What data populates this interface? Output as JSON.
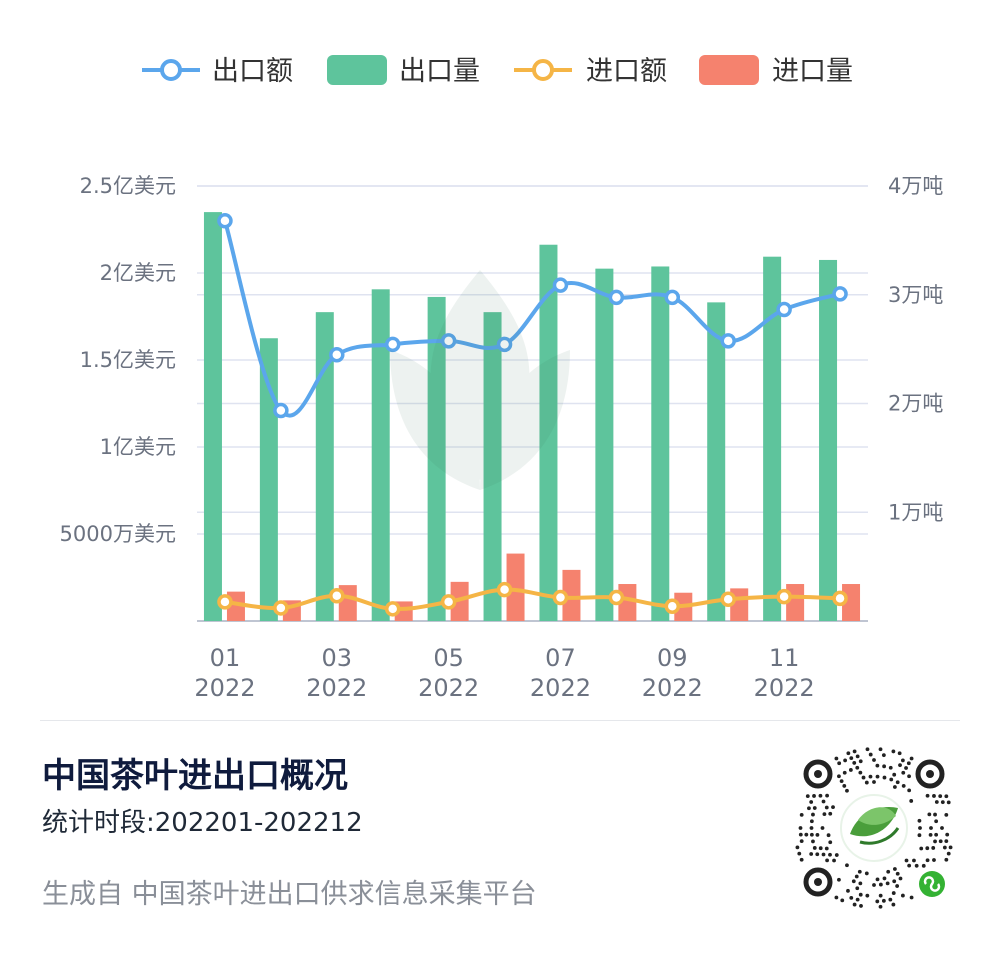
{
  "legend": {
    "export_value": "出口额",
    "export_volume": "出口量",
    "import_value": "进口额",
    "import_volume": "进口量"
  },
  "colors": {
    "export_value": "#5ba6ec",
    "export_volume": "#5ec49c",
    "import_value": "#f5b546",
    "import_volume": "#f5826e",
    "grid": "#dfe3f0"
  },
  "chart_data": {
    "type": "bar",
    "categories": [
      "01",
      "02",
      "03",
      "04",
      "05",
      "06",
      "07",
      "08",
      "09",
      "10",
      "11",
      "12"
    ],
    "x_tick_labels": [
      {
        "month": "01",
        "year": "2022"
      },
      {
        "month": "03",
        "year": "2022"
      },
      {
        "month": "05",
        "year": "2022"
      },
      {
        "month": "07",
        "year": "2022"
      },
      {
        "month": "09",
        "year": "2022"
      },
      {
        "month": "11",
        "year": "2022"
      }
    ],
    "left_axis": {
      "unit": "美元",
      "range": [
        0,
        250000000
      ],
      "tick_values": [
        50000000,
        100000000,
        150000000,
        200000000,
        250000000
      ],
      "tick_labels": [
        "5000万美元",
        "1亿美元",
        "1.5亿美元",
        "2亿美元",
        "2.5亿美元"
      ]
    },
    "right_axis": {
      "unit": "吨",
      "range": [
        0,
        40000
      ],
      "tick_values": [
        10000,
        20000,
        30000,
        40000
      ],
      "tick_labels": [
        "1万吨",
        "2万吨",
        "3万吨",
        "4万吨"
      ]
    },
    "grid": true,
    "legend_position": "top",
    "series": [
      {
        "name": "出口额",
        "type": "line",
        "axis": "left",
        "values": [
          230000000,
          121000000,
          153000000,
          159000000,
          161000000,
          159000000,
          193000000,
          186000000,
          186000000,
          161000000,
          179000000,
          188000000
        ]
      },
      {
        "name": "出口量",
        "type": "bar",
        "axis": "right",
        "values": [
          37600,
          26000,
          28400,
          30500,
          29800,
          28400,
          34600,
          32400,
          32600,
          29300,
          33500,
          33200
        ]
      },
      {
        "name": "进口额",
        "type": "line",
        "axis": "left",
        "values": [
          11000000,
          7500000,
          14500000,
          7000000,
          11000000,
          18000000,
          13500000,
          13500000,
          8500000,
          12500000,
          14000000,
          13000000
        ]
      },
      {
        "name": "进口量",
        "type": "bar",
        "axis": "right",
        "values": [
          2700,
          1900,
          3300,
          1800,
          3600,
          6200,
          4700,
          3400,
          2600,
          3000,
          3400,
          3400
        ]
      }
    ]
  },
  "footer": {
    "title": "中国茶叶进出口概况",
    "period": "统计时段:202201-202212",
    "source": "生成自 中国茶叶进出口供求信息采集平台"
  }
}
